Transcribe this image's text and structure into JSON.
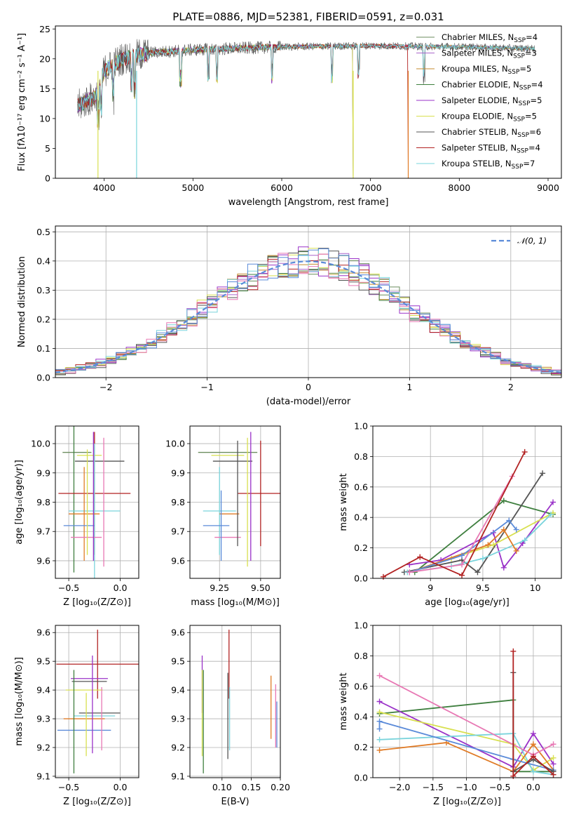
{
  "figure": {
    "title": "PLATE=0886, MJD=52381, FIBERID=0591, z=0.031"
  },
  "chart_data": [
    {
      "id": "spectrum",
      "type": "line",
      "xlabel": "wavelength [Angstrom, rest frame]",
      "ylabel": "Flux [fλ10⁻¹⁷ erg cm⁻² s⁻¹ A⁻¹]",
      "xlim": [
        3450,
        9150
      ],
      "ylim": [
        0,
        25.5
      ],
      "xticks": [
        4000,
        5000,
        6000,
        7000,
        8000,
        9000
      ],
      "yticks": [
        0,
        5,
        10,
        15,
        20,
        25
      ],
      "grid": false,
      "legend_position": "top-right",
      "spectrum_range": [
        3700,
        8850
      ],
      "continuum": [
        [
          3700,
          12
        ],
        [
          3800,
          13
        ],
        [
          3900,
          13.5
        ],
        [
          4000,
          18
        ],
        [
          4200,
          20
        ],
        [
          4500,
          21
        ],
        [
          5000,
          21.5
        ],
        [
          6000,
          22
        ],
        [
          7000,
          22.2
        ],
        [
          8000,
          22
        ],
        [
          8850,
          21.7
        ]
      ],
      "series": [
        {
          "name": "Chabrier MILES, N_SSP=4",
          "label_main": "Chabrier MILES, N",
          "label_sub": "SSP",
          "label_tail": "=4",
          "color": "#6b8e5e",
          "cutoff": 0
        },
        {
          "name": "Salpeter MILES, N_SSP=3",
          "label_main": "Salpeter MILES, N",
          "label_sub": "SSP",
          "label_tail": "=3",
          "color": "#aa66cc",
          "cutoff": 0
        },
        {
          "name": "Kroupa MILES, N_SSP=5",
          "label_main": "Kroupa MILES, N",
          "label_sub": "SSP",
          "label_tail": "=5",
          "color": "#c48a2c",
          "cutoff": 0
        },
        {
          "name": "Chabrier ELODIE, N_SSP=4",
          "label_main": "Chabrier ELODIE, N",
          "label_sub": "SSP",
          "label_tail": "=4",
          "color": "#3f7f3f",
          "cutoff": 6800
        },
        {
          "name": "Salpeter ELODIE, N_SSP=5",
          "label_main": "Salpeter ELODIE, N",
          "label_sub": "SSP",
          "label_tail": "=5",
          "color": "#9a32c8",
          "cutoff": 6800
        },
        {
          "name": "Kroupa ELODIE, N_SSP=5",
          "label_main": "Kroupa ELODIE, N",
          "label_sub": "SSP",
          "label_tail": "=5",
          "color": "#d8e050",
          "cutoff": 6800
        },
        {
          "name": "Chabrier STELIB, N_SSP=6",
          "label_main": "Chabrier STELIB, N",
          "label_sub": "SSP",
          "label_tail": "=6",
          "color": "#555555",
          "cutoff": 0
        },
        {
          "name": "Salpeter STELIB, N_SSP=4",
          "label_main": "Salpeter STELIB, N",
          "label_sub": "SSP",
          "label_tail": "=4",
          "color": "#b22222",
          "cutoff": 7420
        },
        {
          "name": "Kroupa STELIB, N_SSP=7",
          "label_main": "Kroupa STELIB, N",
          "label_sub": "SSP",
          "label_tail": "=7",
          "color": "#7ad4dc",
          "cutoff": 0
        }
      ]
    },
    {
      "id": "residuals",
      "type": "histogram",
      "xlabel": "(data-model)/error",
      "ylabel": "Normed distribution",
      "xlim": [
        -2.5,
        2.5
      ],
      "ylim": [
        0,
        0.52
      ],
      "xticks": [
        -2,
        -1,
        0,
        1,
        2
      ],
      "yticks": [
        0.0,
        0.1,
        0.2,
        0.3,
        0.4,
        0.5
      ],
      "grid": true,
      "legend_position": "top-right",
      "reference_curve": {
        "name": "N(0,1)",
        "label": "𝒩(0, 1)",
        "color": "#5b8bd9",
        "mean": 0,
        "sigma": 1
      },
      "bin_width": 0.1,
      "series_colors": [
        "#6b8e5e",
        "#aa66cc",
        "#c48a2c",
        "#3f7f3f",
        "#9a32c8",
        "#d8e050",
        "#555555",
        "#b22222",
        "#7ad4dc",
        "#e878b4",
        "#5b8bd9"
      ]
    },
    {
      "id": "age-Z",
      "type": "errorbar",
      "xlabel": "Z [log₁₀(Z/Z⊙)]",
      "ylabel": "age  [log₁₀(age/yr)]",
      "xlim": [
        -0.63,
        0.18
      ],
      "ylim": [
        9.54,
        10.06
      ],
      "xticks": [
        -0.5,
        0.0
      ],
      "xtick_labels": [
        "−0.5",
        "0.0"
      ],
      "yticks": [
        9.6,
        9.7,
        9.8,
        9.9,
        10.0
      ],
      "grid": true,
      "points": [
        {
          "x": -0.42,
          "y": 9.97,
          "xerr": 0.14,
          "yerr": 0.0,
          "color": "#6b8e5e"
        },
        {
          "x": -0.45,
          "y": 9.97,
          "xerr": 0.0,
          "yerr": 0.41,
          "color": "#3f7f3f"
        },
        {
          "x": -0.2,
          "y": 9.94,
          "xerr": 0.24,
          "yerr": 0.0,
          "color": "#555555"
        },
        {
          "x": -0.3,
          "y": 9.96,
          "xerr": 0.12,
          "yerr": 0.0,
          "color": "#d8e050"
        },
        {
          "x": -0.25,
          "y": 9.83,
          "xerr": 0.35,
          "yerr": 0.21,
          "color": "#b22222"
        },
        {
          "x": -0.25,
          "y": 9.77,
          "xerr": 0.25,
          "yerr": 0.23,
          "color": "#7ad4dc"
        },
        {
          "x": -0.35,
          "y": 9.76,
          "xerr": 0.15,
          "yerr": 0.16,
          "color": "#e07b26"
        },
        {
          "x": -0.4,
          "y": 9.72,
          "xerr": 0.15,
          "yerr": 0.0,
          "color": "#5b8bd9"
        },
        {
          "x": -0.33,
          "y": 9.68,
          "xerr": 0.15,
          "yerr": 0.0,
          "color": "#e878b4"
        },
        {
          "x": -0.32,
          "y": 9.8,
          "xerr": 0.0,
          "yerr": 0.18,
          "color": "#d8e050"
        },
        {
          "x": -0.26,
          "y": 9.82,
          "xerr": 0.0,
          "yerr": 0.22,
          "color": "#9a32c8"
        },
        {
          "x": -0.16,
          "y": 9.8,
          "xerr": 0.0,
          "yerr": 0.22,
          "color": "#e878b4"
        }
      ]
    },
    {
      "id": "age-mass",
      "type": "errorbar",
      "xlabel": "mass [log₁₀(M/M⊙)]",
      "ylabel": "",
      "xlim": [
        9.07,
        9.62
      ],
      "ylim": [
        9.54,
        10.06
      ],
      "xticks": [
        9.25,
        9.5
      ],
      "xtick_labels": [
        "9.25",
        "9.50"
      ],
      "yticks": [
        9.6,
        9.7,
        9.8,
        9.9,
        10.0
      ],
      "grid": true,
      "points": [
        {
          "x": 9.3,
          "y": 9.97,
          "xerr": 0.18,
          "yerr": 0.0,
          "color": "#6b8e5e"
        },
        {
          "x": 9.33,
          "y": 9.94,
          "xerr": 0.12,
          "yerr": 0.0,
          "color": "#555555"
        },
        {
          "x": 9.3,
          "y": 9.96,
          "xerr": 0.1,
          "yerr": 0.0,
          "color": "#d8e050"
        },
        {
          "x": 9.5,
          "y": 9.83,
          "xerr": 0.14,
          "yerr": 0.18,
          "color": "#b22222"
        },
        {
          "x": 9.25,
          "y": 9.77,
          "xerr": 0.1,
          "yerr": 0.15,
          "color": "#7ad4dc"
        },
        {
          "x": 9.31,
          "y": 9.76,
          "xerr": 0.06,
          "yerr": 0.0,
          "color": "#e07b26"
        },
        {
          "x": 9.23,
          "y": 9.72,
          "xerr": 0.08,
          "yerr": 0.0,
          "color": "#5b8bd9"
        },
        {
          "x": 9.3,
          "y": 9.68,
          "xerr": 0.08,
          "yerr": 0.0,
          "color": "#e878b4"
        },
        {
          "x": 9.36,
          "y": 9.83,
          "xerr": 0.0,
          "yerr": 0.18,
          "color": "#555555"
        },
        {
          "x": 9.42,
          "y": 9.8,
          "xerr": 0.0,
          "yerr": 0.22,
          "color": "#d8e050"
        },
        {
          "x": 9.44,
          "y": 9.82,
          "xerr": 0.0,
          "yerr": 0.22,
          "color": "#9a32c8"
        },
        {
          "x": 9.26,
          "y": 9.72,
          "xerr": 0.0,
          "yerr": 0.12,
          "color": "#5b8bd9"
        }
      ]
    },
    {
      "id": "massweight-age",
      "type": "line",
      "xlabel": "age  [log₁₀(age/yr)]",
      "ylabel": "mass weight",
      "xlim": [
        8.45,
        10.25
      ],
      "ylim": [
        0,
        1.0
      ],
      "xticks": [
        9.0,
        9.5,
        10.0
      ],
      "yticks": [
        0.0,
        0.2,
        0.4,
        0.6,
        0.8,
        1.0
      ],
      "grid": true,
      "series": [
        {
          "color": "#3f7f3f",
          "x": [
            8.85,
            9.7,
            10.17
          ],
          "y": [
            0.04,
            0.51,
            0.42
          ]
        },
        {
          "color": "#555555",
          "x": [
            8.75,
            9.3,
            9.45,
            10.07
          ],
          "y": [
            0.04,
            0.12,
            0.04,
            0.69
          ]
        },
        {
          "color": "#9a32c8",
          "x": [
            8.8,
            9.1,
            9.6,
            9.7,
            9.88,
            10.17
          ],
          "y": [
            0.09,
            0.12,
            0.3,
            0.07,
            0.23,
            0.5
          ]
        },
        {
          "color": "#d8e050",
          "x": [
            8.8,
            9.2,
            9.6,
            10.17
          ],
          "y": [
            0.04,
            0.13,
            0.22,
            0.43
          ]
        },
        {
          "color": "#7ad4dc",
          "x": [
            8.78,
            9.2,
            9.5,
            9.9,
            10.15
          ],
          "y": [
            0.04,
            0.08,
            0.13,
            0.25,
            0.42
          ]
        },
        {
          "color": "#e07b26",
          "x": [
            8.8,
            9.55,
            9.7,
            9.82
          ],
          "y": [
            0.04,
            0.22,
            0.32,
            0.18
          ]
        },
        {
          "color": "#5b8bd9",
          "x": [
            8.8,
            9.3,
            9.75,
            9.82
          ],
          "y": [
            0.04,
            0.15,
            0.38,
            0.32
          ]
        },
        {
          "color": "#e878b4",
          "x": [
            8.8,
            9.3,
            9.78
          ],
          "y": [
            0.04,
            0.09,
            0.67
          ]
        },
        {
          "color": "#b22222",
          "x": [
            8.55,
            8.9,
            9.3,
            9.9
          ],
          "y": [
            0.01,
            0.14,
            0.02,
            0.83
          ]
        }
      ]
    },
    {
      "id": "mass-Z",
      "type": "errorbar",
      "xlabel": "Z [log₁₀(Z/Z⊙)]",
      "ylabel": "mass [log₁₀(M/M⊙)]",
      "xlim": [
        -0.63,
        0.18
      ],
      "ylim": [
        9.095,
        9.625
      ],
      "xticks": [
        -0.5,
        0.0
      ],
      "xtick_labels": [
        "−0.5",
        "0.0"
      ],
      "yticks": [
        9.1,
        9.2,
        9.3,
        9.4,
        9.5,
        9.6
      ],
      "grid": true,
      "points": [
        {
          "x": -0.22,
          "y": 9.49,
          "xerr": 0.4,
          "yerr": 0.12,
          "color": "#b22222"
        },
        {
          "x": -0.3,
          "y": 9.44,
          "xerr": 0.18,
          "yerr": 0.0,
          "color": "#9a32c8"
        },
        {
          "x": -0.3,
          "y": 9.43,
          "xerr": 0.17,
          "yerr": 0.0,
          "color": "#555555"
        },
        {
          "x": -0.35,
          "y": 9.4,
          "xerr": 0.18,
          "yerr": 0.0,
          "color": "#d8e050"
        },
        {
          "x": -0.2,
          "y": 9.32,
          "xerr": 0.2,
          "yerr": 0.0,
          "color": "#555555"
        },
        {
          "x": -0.25,
          "y": 9.31,
          "xerr": 0.2,
          "yerr": 0.0,
          "color": "#7ad4dc"
        },
        {
          "x": -0.35,
          "y": 9.3,
          "xerr": 0.2,
          "yerr": 0.0,
          "color": "#e07b26"
        },
        {
          "x": -0.35,
          "y": 9.26,
          "xerr": 0.26,
          "yerr": 0.0,
          "color": "#5b8bd9"
        },
        {
          "x": -0.45,
          "y": 9.29,
          "xerr": 0.0,
          "yerr": 0.18,
          "color": "#3f7f3f"
        },
        {
          "x": -0.27,
          "y": 9.35,
          "xerr": 0.0,
          "yerr": 0.17,
          "color": "#9a32c8"
        },
        {
          "x": -0.18,
          "y": 9.3,
          "xerr": 0.0,
          "yerr": 0.11,
          "color": "#e878b4"
        },
        {
          "x": -0.33,
          "y": 9.28,
          "xerr": 0.0,
          "yerr": 0.11,
          "color": "#d8e050"
        }
      ]
    },
    {
      "id": "mass-ebv",
      "type": "errorbar",
      "xlabel": "E(B-V)",
      "ylabel": "",
      "xlim": [
        0.045,
        0.2
      ],
      "ylim": [
        9.095,
        9.625
      ],
      "xticks": [
        0.1,
        0.15,
        0.2
      ],
      "xtick_labels": [
        "0.10",
        "0.15",
        "0.20"
      ],
      "yticks": [
        9.1,
        9.2,
        9.3,
        9.4,
        9.5,
        9.6
      ],
      "grid": true,
      "points": [
        {
          "x": 0.066,
          "y": 9.42,
          "xerr": 0.0,
          "yerr": 0.1,
          "color": "#9a32c8"
        },
        {
          "x": 0.066,
          "y": 9.32,
          "xerr": 0.0,
          "yerr": 0.15,
          "color": "#d8e050"
        },
        {
          "x": 0.068,
          "y": 9.29,
          "xerr": 0.0,
          "yerr": 0.18,
          "color": "#3f7f3f"
        },
        {
          "x": 0.11,
          "y": 9.31,
          "xerr": 0.0,
          "yerr": 0.15,
          "color": "#555555"
        },
        {
          "x": 0.112,
          "y": 9.49,
          "xerr": 0.0,
          "yerr": 0.12,
          "color": "#b22222"
        },
        {
          "x": 0.113,
          "y": 9.3,
          "xerr": 0.0,
          "yerr": 0.11,
          "color": "#7ad4dc"
        },
        {
          "x": 0.184,
          "y": 9.34,
          "xerr": 0.0,
          "yerr": 0.11,
          "color": "#e07b26"
        },
        {
          "x": 0.192,
          "y": 9.31,
          "xerr": 0.0,
          "yerr": 0.11,
          "color": "#e878b4"
        },
        {
          "x": 0.194,
          "y": 9.28,
          "xerr": 0.0,
          "yerr": 0.08,
          "color": "#5b8bd9"
        }
      ]
    },
    {
      "id": "massweight-Z",
      "type": "line",
      "xlabel": "Z [log₁₀(Z/Z⊙)]",
      "ylabel": "mass weight",
      "xlim": [
        -2.4,
        0.42
      ],
      "ylim": [
        0,
        1.0
      ],
      "xticks": [
        -2.0,
        -1.5,
        -1.0,
        -0.5,
        0.0
      ],
      "xtick_labels": [
        "−2.0",
        "−1.5",
        "−1.0",
        "−0.5",
        "0.0"
      ],
      "yticks": [
        0.0,
        0.2,
        0.4,
        0.6,
        0.8,
        1.0
      ],
      "grid": true,
      "series": [
        {
          "color": "#3f7f3f",
          "x": [
            -2.3,
            -0.3,
            -0.3,
            0.3
          ],
          "y": [
            0.42,
            0.51,
            0.04,
            0.04
          ]
        },
        {
          "color": "#9a32c8",
          "x": [
            -2.3,
            -0.3,
            0.0,
            0.3
          ],
          "y": [
            0.5,
            0.07,
            0.29,
            0.09
          ]
        },
        {
          "color": "#d8e050",
          "x": [
            -2.3,
            -0.3,
            0.0,
            0.3
          ],
          "y": [
            0.43,
            0.22,
            0.05,
            0.13
          ]
        },
        {
          "color": "#7ad4dc",
          "x": [
            -2.3,
            -0.3,
            0.0,
            0.3
          ],
          "y": [
            0.25,
            0.29,
            0.04,
            0.02
          ]
        },
        {
          "color": "#e07b26",
          "x": [
            -2.3,
            -1.3,
            -0.3,
            0.0,
            0.3
          ],
          "y": [
            0.18,
            0.23,
            0.04,
            0.22,
            0.05
          ]
        },
        {
          "color": "#5b8bd9",
          "x": [
            -2.3,
            -2.3,
            -0.3,
            0.3
          ],
          "y": [
            0.32,
            0.37,
            0.12,
            0.05
          ]
        },
        {
          "color": "#e878b4",
          "x": [
            -2.3,
            0.0,
            0.3
          ],
          "y": [
            0.67,
            0.15,
            0.22
          ]
        },
        {
          "color": "#555555",
          "x": [
            -0.3,
            -0.3,
            0.0,
            0.3
          ],
          "y": [
            0.69,
            0.04,
            0.12,
            0.04
          ]
        },
        {
          "color": "#b22222",
          "x": [
            -0.3,
            -0.3,
            0.0,
            0.3
          ],
          "y": [
            0.83,
            0.01,
            0.14,
            0.02
          ]
        }
      ]
    }
  ]
}
